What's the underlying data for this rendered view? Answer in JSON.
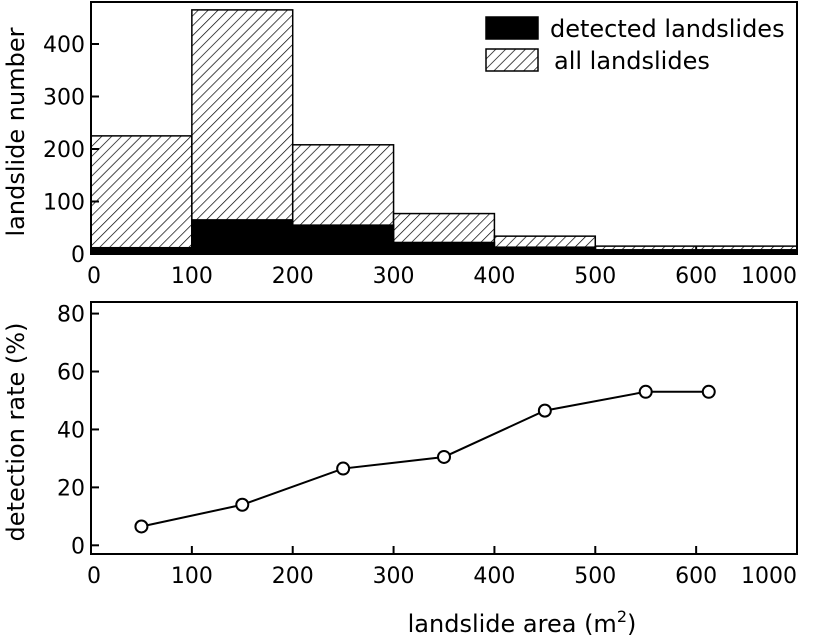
{
  "chart_data": [
    {
      "type": "bar",
      "subtype": "stacked-overlay histogram",
      "ylabel": "landslide number",
      "xlabel": "",
      "x_ticks": [
        "0",
        "100",
        "200",
        "300",
        "400",
        "500",
        "600",
        "1000"
      ],
      "y_ticks": [
        "0",
        "100",
        "200",
        "300",
        "400"
      ],
      "ylim": [
        0,
        480
      ],
      "bins": [
        {
          "from": 0,
          "to": 100
        },
        {
          "from": 100,
          "to": 200
        },
        {
          "from": 200,
          "to": 300
        },
        {
          "from": 300,
          "to": 400
        },
        {
          "from": 400,
          "to": 500
        },
        {
          "from": 500,
          "to": 1000
        }
      ],
      "series": [
        {
          "name": "all landslides",
          "pattern": "hatched",
          "values": [
            225,
            465,
            208,
            77,
            34,
            15
          ]
        },
        {
          "name": "detected landslides",
          "pattern": "solid",
          "values": [
            12,
            65,
            55,
            22,
            13,
            8
          ]
        }
      ],
      "legend": {
        "position": "top-right",
        "entries": [
          {
            "label": "detected landslides",
            "pattern": "solid"
          },
          {
            "label": "all landslides",
            "pattern": "hatched"
          }
        ]
      },
      "colors": {
        "solid": "#000000",
        "hatched": "#000000",
        "background": "#ffffff"
      }
    },
    {
      "type": "line",
      "marker": "open-circle",
      "xlabel": "landslide area (m",
      "xlabel_sup": "2",
      "xlabel_close": ")",
      "ylabel": "detection rate (%)",
      "x_ticks": [
        "0",
        "100",
        "200",
        "300",
        "400",
        "500",
        "600",
        "1000"
      ],
      "y_ticks": [
        "0",
        "20",
        "40",
        "60",
        "80"
      ],
      "ylim": [
        -3,
        84
      ],
      "series": [
        {
          "x": [
            50,
            150,
            250,
            350,
            450,
            550,
            650
          ],
          "y": [
            6.5,
            14,
            26.5,
            30.5,
            46.5,
            53,
            53
          ]
        }
      ]
    }
  ]
}
